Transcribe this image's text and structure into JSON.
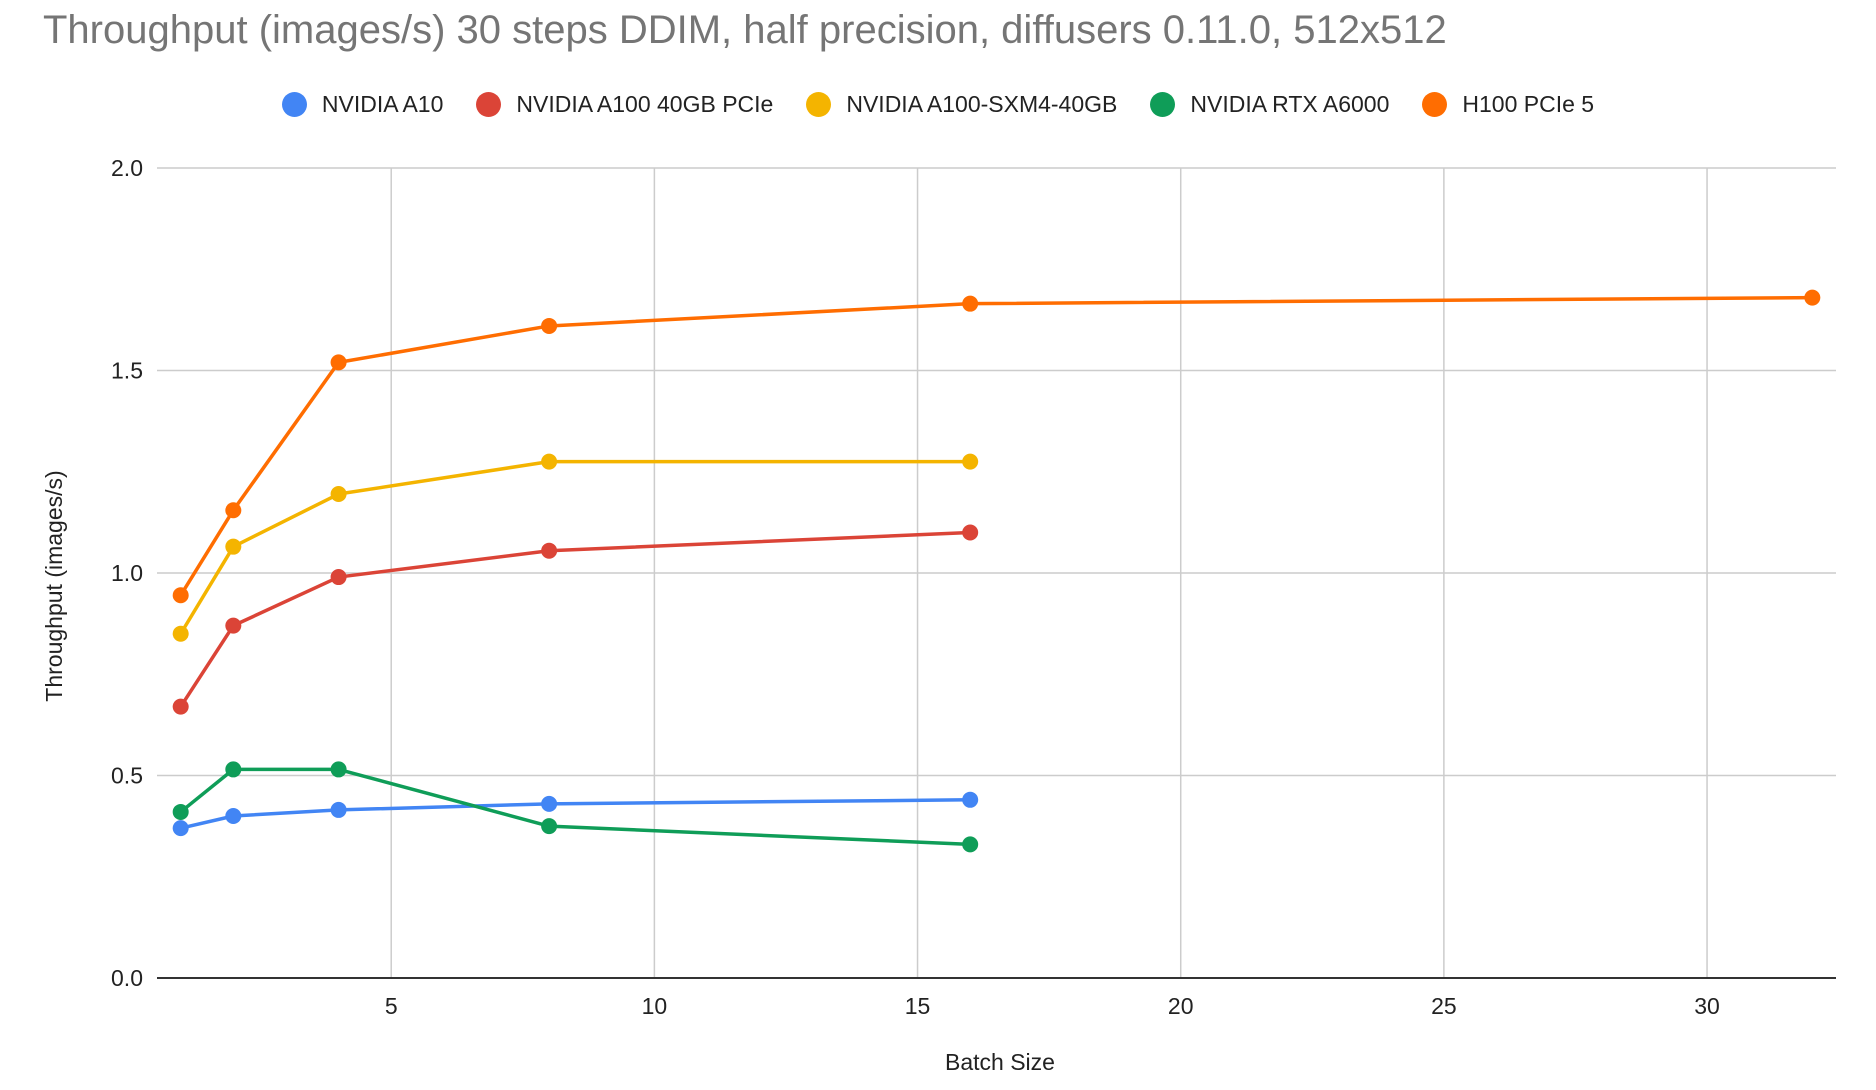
{
  "chart_data": {
    "type": "line",
    "title": "Throughput (images/s) 30 steps DDIM, half precision, diffusers 0.11.0, 512x512",
    "xlabel": "Batch Size",
    "ylabel": "Throughput (images/s)",
    "xlim": [
      0.55,
      32.45
    ],
    "ylim": [
      0,
      2
    ],
    "x_ticks": [
      5,
      10,
      15,
      20,
      25,
      30
    ],
    "y_ticks": [
      "0.0",
      "0.5",
      "1.0",
      "1.5",
      "2.0"
    ],
    "grid": true,
    "legend_position": "top",
    "series": [
      {
        "name": "NVIDIA A10",
        "color": "#4285f4",
        "x": [
          1,
          2,
          4,
          8,
          16
        ],
        "values": [
          0.37,
          0.4,
          0.415,
          0.43,
          0.44
        ]
      },
      {
        "name": "NVIDIA A100 40GB PCIe",
        "color": "#db4437",
        "x": [
          1,
          2,
          4,
          8,
          16
        ],
        "values": [
          0.67,
          0.87,
          0.99,
          1.055,
          1.1
        ]
      },
      {
        "name": "NVIDIA A100-SXM4-40GB",
        "color": "#f4b400",
        "x": [
          1,
          2,
          4,
          8,
          16
        ],
        "values": [
          0.85,
          1.065,
          1.195,
          1.275,
          1.275
        ]
      },
      {
        "name": "NVIDIA RTX A6000",
        "color": "#0f9d58",
        "x": [
          1,
          2,
          4,
          8,
          16
        ],
        "values": [
          0.41,
          0.515,
          0.515,
          0.375,
          0.33
        ]
      },
      {
        "name": "H100 PCIe 5",
        "color": "#ff6d01",
        "x": [
          1,
          2,
          4,
          8,
          16,
          32
        ],
        "values": [
          0.945,
          1.155,
          1.52,
          1.61,
          1.665,
          1.68
        ]
      }
    ]
  }
}
